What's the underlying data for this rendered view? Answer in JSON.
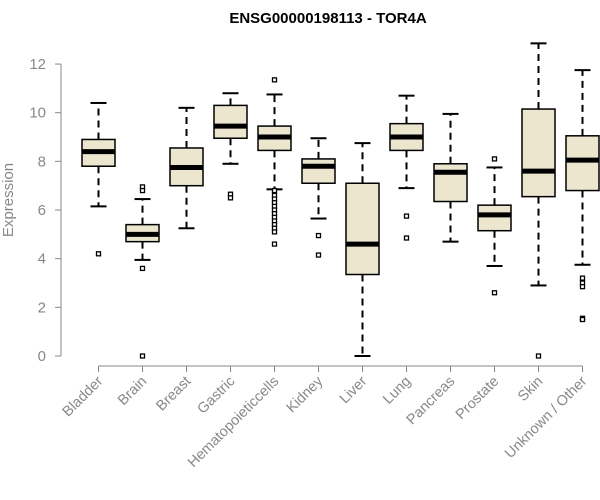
{
  "chart_data": {
    "type": "boxplot",
    "title": "ENSG00000198113 - TOR4A",
    "xlabel": "",
    "ylabel": "Expression",
    "ylim": [
      0,
      12
    ],
    "yticks": [
      0,
      2,
      4,
      6,
      8,
      10,
      12
    ],
    "colors": {
      "box_fill": "#ede6cf",
      "box_stroke": "#000000",
      "axis": "#888888",
      "text": "#888888"
    },
    "categories": [
      "Bladder",
      "Brain",
      "Breast",
      "Gastric",
      "Hematopoieticcells",
      "Kidney",
      "Liver",
      "Lung",
      "Pancreas",
      "Prostate",
      "Skin",
      "Unknown / Other"
    ],
    "series": [
      {
        "name": "Bladder",
        "whisker_low": 6.15,
        "q1": 7.8,
        "median": 8.4,
        "q3": 8.9,
        "whisker_high": 10.4,
        "outliers": [
          4.2
        ]
      },
      {
        "name": "Brain",
        "whisker_low": 3.95,
        "q1": 4.7,
        "median": 5.0,
        "q3": 5.4,
        "whisker_high": 6.45,
        "outliers": [
          6.95,
          6.8,
          3.6,
          0.0
        ]
      },
      {
        "name": "Breast",
        "whisker_low": 5.25,
        "q1": 7.0,
        "median": 7.75,
        "q3": 8.55,
        "whisker_high": 10.2,
        "outliers": []
      },
      {
        "name": "Gastric",
        "whisker_low": 7.9,
        "q1": 8.95,
        "median": 9.45,
        "q3": 10.3,
        "whisker_high": 10.8,
        "outliers": [
          6.65,
          6.5
        ]
      },
      {
        "name": "Hematopoieticcells",
        "whisker_low": 6.85,
        "q1": 8.45,
        "median": 9.0,
        "q3": 9.45,
        "whisker_high": 10.75,
        "outliers": [
          11.35,
          6.8,
          6.6,
          6.45,
          6.3,
          6.15,
          6.0,
          5.85,
          5.7,
          5.55,
          5.4,
          5.25,
          5.1,
          4.6
        ]
      },
      {
        "name": "Kidney",
        "whisker_low": 5.65,
        "q1": 7.1,
        "median": 7.8,
        "q3": 8.1,
        "whisker_high": 8.95,
        "outliers": [
          4.95,
          4.15
        ]
      },
      {
        "name": "Liver",
        "whisker_low": 0.0,
        "q1": 3.35,
        "median": 4.6,
        "q3": 7.1,
        "whisker_high": 8.75,
        "outliers": []
      },
      {
        "name": "Lung",
        "whisker_low": 6.9,
        "q1": 8.45,
        "median": 9.0,
        "q3": 9.55,
        "whisker_high": 10.7,
        "outliers": [
          5.75,
          4.85
        ]
      },
      {
        "name": "Pancreas",
        "whisker_low": 4.7,
        "q1": 6.35,
        "median": 7.55,
        "q3": 7.9,
        "whisker_high": 9.95,
        "outliers": []
      },
      {
        "name": "Prostate",
        "whisker_low": 3.7,
        "q1": 5.15,
        "median": 5.8,
        "q3": 6.2,
        "whisker_high": 7.75,
        "outliers": [
          8.1,
          2.6
        ]
      },
      {
        "name": "Skin",
        "whisker_low": 2.9,
        "q1": 6.55,
        "median": 7.6,
        "q3": 10.15,
        "whisker_high": 12.85,
        "outliers": [
          0.0
        ]
      },
      {
        "name": "Unknown / Other",
        "whisker_low": 3.75,
        "q1": 6.8,
        "median": 8.05,
        "q3": 9.05,
        "whisker_high": 11.75,
        "outliers": [
          3.2,
          3.0,
          2.85,
          1.55,
          1.5
        ]
      }
    ]
  }
}
